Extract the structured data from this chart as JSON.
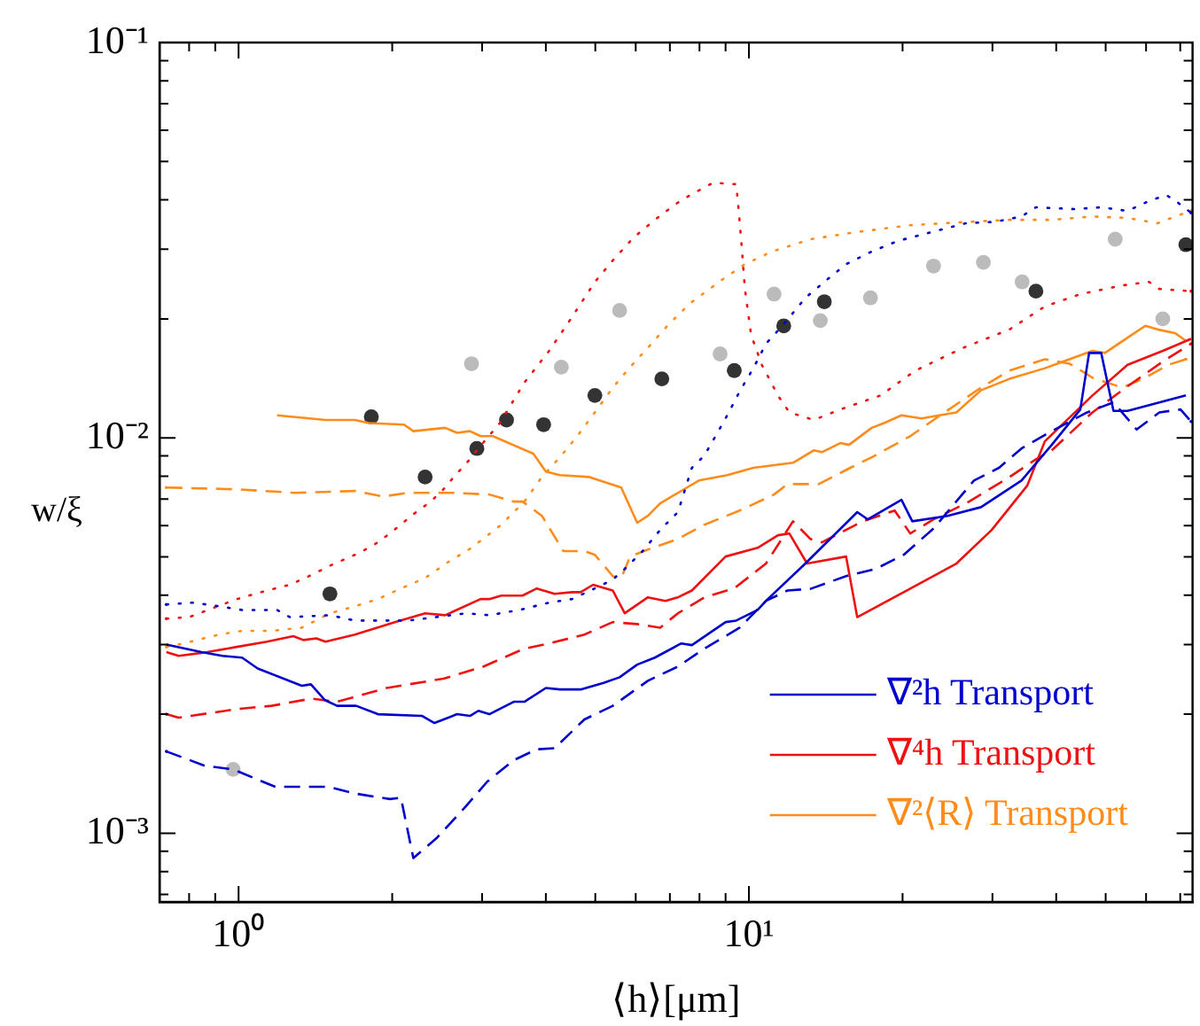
{
  "chart_data": {
    "type": "line",
    "xlabel": "⟨h⟩[μm]",
    "ylabel": "w/ξ",
    "log": "xy",
    "marker": "none",
    "legend": "bottom right",
    "xlim": [
      0.7,
      74
    ],
    "ylim": [
      0.00067,
      0.1
    ],
    "xticks": [
      {
        "value": 0.7,
        "label": null
      },
      {
        "value": 0.8,
        "label": null
      },
      {
        "value": 0.9,
        "label": null
      },
      {
        "value": 1,
        "label": "10⁰"
      },
      {
        "value": 2,
        "label": null
      },
      {
        "value": 3,
        "label": null
      },
      {
        "value": 4,
        "label": null
      },
      {
        "value": 5,
        "label": null
      },
      {
        "value": 6,
        "label": null
      },
      {
        "value": 7,
        "label": null
      },
      {
        "value": 8,
        "label": null
      },
      {
        "value": 9,
        "label": null
      },
      {
        "value": 10,
        "label": "10¹"
      },
      {
        "value": 20,
        "label": null
      },
      {
        "value": 30,
        "label": null
      },
      {
        "value": 40,
        "label": null
      },
      {
        "value": 50,
        "label": null
      },
      {
        "value": 60,
        "label": null
      },
      {
        "value": 70,
        "label": null
      }
    ],
    "yticks": [
      {
        "value": 0.0007,
        "label": null
      },
      {
        "value": 0.0008,
        "label": null
      },
      {
        "value": 0.0009,
        "label": null
      },
      {
        "value": 0.001,
        "label": "10⁻³"
      },
      {
        "value": 0.002,
        "label": null
      },
      {
        "value": 0.003,
        "label": null
      },
      {
        "value": 0.004,
        "label": null
      },
      {
        "value": 0.005,
        "label": null
      },
      {
        "value": 0.006,
        "label": null
      },
      {
        "value": 0.007,
        "label": null
      },
      {
        "value": 0.008,
        "label": null
      },
      {
        "value": 0.009,
        "label": null
      },
      {
        "value": 0.01,
        "label": "10⁻²"
      },
      {
        "value": 0.02,
        "label": null
      },
      {
        "value": 0.03,
        "label": null
      },
      {
        "value": 0.04,
        "label": null
      },
      {
        "value": 0.05,
        "label": null
      },
      {
        "value": 0.06,
        "label": null
      },
      {
        "value": 0.07,
        "label": null
      },
      {
        "value": 0.08,
        "label": null
      },
      {
        "value": 0.09,
        "label": null
      },
      {
        "value": 0.1,
        "label": "10⁻¹"
      }
    ],
    "series": [
      {
        "name": "∇²h Transport",
        "color": "#0000cc",
        "line_style": "solid",
        "x": [
          0.722,
          0.846,
          0.93,
          1.016,
          1.09,
          1.33,
          1.386,
          1.477,
          1.56,
          1.7,
          1.875,
          2.29,
          2.42,
          2.68,
          2.84,
          2.95,
          3.1,
          3.46,
          3.63,
          4.0,
          4.26,
          4.68,
          5.19,
          5.58,
          6.04,
          6.54,
          7.26,
          7.37,
          7.73,
          9.0,
          9.44,
          10.4,
          10.8,
          12.9,
          16.3,
          17.1,
          19.9,
          20.9,
          24.5,
          28.5,
          34.2,
          39.2,
          44.6,
          46.4,
          49.0,
          51.8,
          55.2,
          71.8
        ],
        "values": [
          0.003,
          0.00287,
          0.00281,
          0.00278,
          0.00261,
          0.00236,
          0.00238,
          0.00217,
          0.0021,
          0.0021,
          0.002,
          0.00198,
          0.0019,
          0.002,
          0.00198,
          0.00204,
          0.002,
          0.00215,
          0.00215,
          0.00233,
          0.00231,
          0.00231,
          0.0024,
          0.00248,
          0.00267,
          0.00278,
          0.00299,
          0.00302,
          0.00299,
          0.00342,
          0.00345,
          0.00367,
          0.00387,
          0.00481,
          0.00649,
          0.00622,
          0.00697,
          0.00615,
          0.00635,
          0.00668,
          0.0078,
          0.0096,
          0.0118,
          0.0164,
          0.0164,
          0.0117,
          0.0117,
          0.0128
        ]
      },
      {
        "color": "#0000cc",
        "line_style": "dashed",
        "x": [
          0.722,
          0.86,
          0.976,
          1.18,
          1.5,
          1.69,
          1.98,
          2.08,
          2.2,
          2.44,
          2.79,
          3.07,
          3.46,
          3.84,
          4.16,
          4.76,
          5.41,
          6.34,
          7.26,
          8.18,
          9.59,
          10.8,
          11.9,
          13.2,
          15.5,
          17.7,
          20.1,
          23.0,
          27.6,
          30.9,
          34.2,
          39.2,
          46.0,
          51.8,
          57.5,
          63.7,
          70.1,
          73.5
        ],
        "values": [
          0.00161,
          0.00148,
          0.00145,
          0.00131,
          0.00131,
          0.00126,
          0.00122,
          0.00123,
          0.000865,
          0.00097,
          0.00117,
          0.00135,
          0.00153,
          0.00163,
          0.00164,
          0.00194,
          0.0021,
          0.00243,
          0.00264,
          0.00293,
          0.00331,
          0.00387,
          0.00411,
          0.00415,
          0.00447,
          0.00466,
          0.00506,
          0.0059,
          0.0078,
          0.0084,
          0.0094,
          0.0104,
          0.0116,
          0.0123,
          0.0105,
          0.0116,
          0.0118,
          0.011
        ]
      },
      {
        "color": "#0000cc",
        "line_style": "dotted",
        "x": [
          0.722,
          0.813,
          0.916,
          1.016,
          1.19,
          1.26,
          1.51,
          1.69,
          1.83,
          2.03,
          2.15,
          2.44,
          2.79,
          3.1,
          3.55,
          4.06,
          4.5,
          4.99,
          5.41,
          5.71,
          6.19,
          6.7,
          7.26,
          7.73,
          8.18,
          9.0,
          9.59,
          10.2,
          10.8,
          11.7,
          12.9,
          14.05,
          15.5,
          17.4,
          19.6,
          22.1,
          26.6,
          30.4,
          34.2,
          36.5,
          43.5,
          49.0,
          55.2,
          61.2,
          65.8,
          69.0,
          73.5
        ],
        "values": [
          0.00379,
          0.00383,
          0.00375,
          0.00367,
          0.00367,
          0.00352,
          0.00356,
          0.00345,
          0.00345,
          0.00345,
          0.00345,
          0.00352,
          0.0036,
          0.00356,
          0.00367,
          0.00383,
          0.00391,
          0.00416,
          0.00438,
          0.00466,
          0.00517,
          0.00585,
          0.00649,
          0.0084,
          0.00902,
          0.0112,
          0.0131,
          0.015,
          0.0173,
          0.0194,
          0.0226,
          0.0248,
          0.0275,
          0.0296,
          0.0315,
          0.0328,
          0.0349,
          0.0352,
          0.0363,
          0.0383,
          0.0379,
          0.0383,
          0.0375,
          0.0399,
          0.0411,
          0.0395,
          0.0371
        ]
      },
      {
        "name": "∇⁴h Transport",
        "color": "#ee1111",
        "line_style": "solid",
        "x": [
          0.722,
          0.763,
          0.867,
          0.992,
          1.136,
          1.28,
          1.34,
          1.42,
          1.48,
          1.69,
          2.03,
          2.32,
          2.54,
          2.98,
          3.1,
          3.27,
          3.6,
          3.84,
          4.16,
          4.5,
          4.68,
          4.95,
          5.41,
          5.71,
          6.34,
          6.86,
          7.26,
          7.73,
          9.0,
          10.4,
          11.4,
          12.0,
          13.0,
          15.5,
          16.3,
          20.1,
          25.5,
          29.9,
          35.1,
          38.0,
          47.1,
          55.2,
          64.7,
          73.5
        ],
        "values": [
          0.00287,
          0.00281,
          0.00287,
          0.00296,
          0.00305,
          0.00315,
          0.00308,
          0.00311,
          0.00305,
          0.00318,
          0.00342,
          0.0036,
          0.00356,
          0.00391,
          0.00391,
          0.00399,
          0.00399,
          0.00416,
          0.00403,
          0.00407,
          0.00407,
          0.00425,
          0.00411,
          0.0036,
          0.00395,
          0.00387,
          0.00395,
          0.00411,
          0.00501,
          0.00527,
          0.00567,
          0.00573,
          0.00481,
          0.00501,
          0.00352,
          0.00407,
          0.00481,
          0.00585,
          0.00757,
          0.0098,
          0.0128,
          0.0153,
          0.0166,
          0.0178
        ]
      },
      {
        "color": "#ee1111",
        "line_style": "dashed",
        "x": [
          0.722,
          0.763,
          0.992,
          1.16,
          1.39,
          1.56,
          1.95,
          2.52,
          3.02,
          3.63,
          4.06,
          4.76,
          5.41,
          6.04,
          6.7,
          7.26,
          8.18,
          9.35,
          10.8,
          12.2,
          13.2,
          13.9,
          16.7,
          19.3,
          20.7,
          23.0,
          27.0,
          32.4,
          36.5,
          39.2,
          47.1,
          55.2,
          64.7,
          73.5
        ],
        "values": [
          0.002,
          0.00196,
          0.00206,
          0.0021,
          0.00219,
          0.00215,
          0.00233,
          0.00246,
          0.00264,
          0.00293,
          0.00302,
          0.00318,
          0.00342,
          0.00338,
          0.00331,
          0.0036,
          0.00395,
          0.00416,
          0.00481,
          0.00615,
          0.00555,
          0.00544,
          0.00615,
          0.00655,
          0.00573,
          0.00622,
          0.0069,
          0.00796,
          0.00883,
          0.0093,
          0.0116,
          0.0135,
          0.0156,
          0.0173
        ]
      },
      {
        "color": "#ee1111",
        "line_style": "dotted",
        "x": [
          0.722,
          0.8,
          0.992,
          1.136,
          1.26,
          1.4,
          1.51,
          1.69,
          1.83,
          1.98,
          2.2,
          2.38,
          2.52,
          2.64,
          2.84,
          2.95,
          3.25,
          3.63,
          4.06,
          4.5,
          4.99,
          5.41,
          5.94,
          6.54,
          7.2,
          7.67,
          8.51,
          9.44,
          9.51,
          9.66,
          9.82,
          10.1,
          10.6,
          11.4,
          12.0,
          13.4,
          15.1,
          18.1,
          21.2,
          26.3,
          32.4,
          38.0,
          44.6,
          53.9,
          60.8,
          63.7,
          73.5
        ],
        "values": [
          0.00349,
          0.00352,
          0.00391,
          0.00411,
          0.00425,
          0.00452,
          0.00475,
          0.00506,
          0.00533,
          0.00573,
          0.00641,
          0.0069,
          0.00741,
          0.00796,
          0.00883,
          0.0094,
          0.0109,
          0.0138,
          0.0166,
          0.0202,
          0.0248,
          0.0281,
          0.0321,
          0.0356,
          0.0391,
          0.0411,
          0.0442,
          0.0438,
          0.0399,
          0.0315,
          0.0238,
          0.0182,
          0.0153,
          0.0128,
          0.0116,
          0.0111,
          0.0118,
          0.0128,
          0.0148,
          0.0169,
          0.0188,
          0.0215,
          0.0231,
          0.0243,
          0.0248,
          0.0238,
          0.0235
        ]
      },
      {
        "name": "∇²⟨R⟩ Transport",
        "color": "#ff8c1a",
        "line_style": "solid",
        "x": [
          1.19,
          1.48,
          1.69,
          1.8,
          2.11,
          2.2,
          2.54,
          2.68,
          2.84,
          2.98,
          3.15,
          3.78,
          4.0,
          4.26,
          4.87,
          5.62,
          6.04,
          6.34,
          6.7,
          7.26,
          7.98,
          9.07,
          10.2,
          12.2,
          13.4,
          13.9,
          15.1,
          15.7,
          17.4,
          18.4,
          19.9,
          21.8,
          23.6,
          25.5,
          28.5,
          32.4,
          38.0,
          40.2,
          47.1,
          49.8,
          59.8,
          63.2,
          68.4,
          71.8,
          73.5
        ],
        "values": [
          0.0114,
          0.0111,
          0.0111,
          0.0109,
          0.0108,
          0.0104,
          0.0106,
          0.0103,
          0.0104,
          0.0101,
          0.0101,
          0.00912,
          0.00822,
          0.00805,
          0.00796,
          0.00749,
          0.0061,
          0.00635,
          0.00683,
          0.00726,
          0.0078,
          0.00805,
          0.0084,
          0.00865,
          0.0093,
          0.0092,
          0.0097,
          0.0096,
          0.0106,
          0.0109,
          0.0114,
          0.0112,
          0.0114,
          0.0116,
          0.0132,
          0.0141,
          0.015,
          0.0154,
          0.0166,
          0.0164,
          0.0192,
          0.0188,
          0.0184,
          0.0176,
          0.0178
        ]
      },
      {
        "color": "#ff8c1a",
        "line_style": "dashed",
        "x": [
          0.722,
          0.992,
          1.29,
          1.69,
          1.92,
          2.15,
          2.64,
          3.1,
          3.46,
          3.6,
          3.93,
          4.33,
          4.76,
          4.99,
          5.41,
          5.62,
          5.85,
          6.34,
          7.26,
          8.18,
          9.59,
          11.2,
          11.9,
          13.7,
          15.8,
          17.4,
          20.7,
          23.0,
          28.5,
          32.4,
          38.0,
          42.5,
          47.1,
          53.9,
          59.8,
          66.3,
          71.8
        ],
        "values": [
          0.00749,
          0.00741,
          0.00726,
          0.00734,
          0.00711,
          0.00726,
          0.00726,
          0.00719,
          0.0069,
          0.0069,
          0.00635,
          0.00517,
          0.00517,
          0.00506,
          0.00447,
          0.00442,
          0.00501,
          0.00522,
          0.00555,
          0.00603,
          0.00655,
          0.00719,
          0.00764,
          0.00764,
          0.0084,
          0.00893,
          0.0101,
          0.0111,
          0.0134,
          0.0148,
          0.0158,
          0.0154,
          0.0142,
          0.0134,
          0.0142,
          0.0153,
          0.0158
        ]
      },
      {
        "color": "#ff8c1a",
        "line_style": "dotted",
        "x": [
          0.722,
          0.78,
          0.916,
          1.016,
          1.16,
          1.33,
          1.51,
          1.69,
          1.875,
          2.08,
          2.32,
          2.58,
          2.86,
          3.27,
          3.63,
          3.93,
          4.26,
          4.61,
          4.99,
          5.41,
          5.85,
          6.34,
          6.97,
          7.67,
          8.85,
          9.82,
          11.1,
          13.2,
          16.1,
          20.7,
          27.0,
          32.4,
          39.2,
          47.1,
          55.2,
          63.2,
          68.4,
          73.5
        ],
        "values": [
          0.00296,
          0.00302,
          0.00318,
          0.00325,
          0.00325,
          0.00331,
          0.0036,
          0.00375,
          0.00391,
          0.00416,
          0.00442,
          0.00486,
          0.00527,
          0.00603,
          0.0069,
          0.00796,
          0.00893,
          0.0101,
          0.0116,
          0.0134,
          0.0151,
          0.0169,
          0.0194,
          0.0219,
          0.0251,
          0.0275,
          0.0296,
          0.0318,
          0.0331,
          0.0345,
          0.0352,
          0.0356,
          0.0356,
          0.0363,
          0.036,
          0.0349,
          0.0363,
          0.0375
        ]
      },
      {
        "type": "scatter",
        "marker": "circle",
        "color": "#333333",
        "x": [
          1.51,
          1.82,
          2.32,
          2.93,
          3.35,
          3.96,
          4.99,
          6.75,
          9.36,
          11.7,
          14.05,
          36.5,
          71.8
        ],
        "values": [
          0.00403,
          0.0113,
          0.00796,
          0.0094,
          0.0111,
          0.0108,
          0.0128,
          0.0141,
          0.0148,
          0.0192,
          0.0221,
          0.0235,
          0.0308
        ]
      },
      {
        "type": "scatter",
        "marker": "circle",
        "color": "#bbbbbb",
        "x": [
          0.976,
          2.86,
          4.29,
          5.58,
          8.78,
          11.2,
          13.8,
          17.3,
          23.0,
          28.8,
          34.3,
          52.2,
          64.7
        ],
        "values": [
          0.00145,
          0.0154,
          0.0151,
          0.021,
          0.0163,
          0.0231,
          0.0198,
          0.0226,
          0.0272,
          0.0278,
          0.0248,
          0.0318,
          0.02
        ]
      }
    ]
  }
}
